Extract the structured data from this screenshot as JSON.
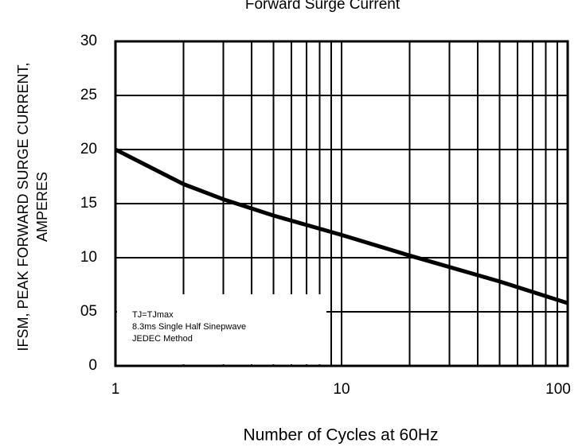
{
  "chart_data": {
    "type": "line",
    "title": "Forward Surge Current",
    "xlabel": "Number of Cycles at 60Hz",
    "ylabel": [
      "IFSM, PEAK FORWARD SURGE CURRENT,",
      "AMPERES"
    ],
    "annotation": [
      "TJ=TJmax",
      "8.3ms Single Half  Sinepwave",
      "JEDEC Method"
    ],
    "x": [
      1,
      2,
      3,
      5,
      10,
      20,
      50,
      100
    ],
    "series": [
      {
        "color": "#000000",
        "values": [
          20,
          16.8,
          15.4,
          13.9,
          12.1,
          10.2,
          7.8,
          5.8
        ]
      }
    ],
    "xscale": "log",
    "xlim": [
      1,
      100
    ],
    "xticks": [
      1,
      10,
      100
    ],
    "xgrid": [
      2,
      3,
      4,
      5,
      6,
      7,
      8,
      9,
      10,
      20,
      30,
      40,
      50,
      60,
      70,
      80,
      90
    ],
    "ylim": [
      0,
      30
    ],
    "yticks": [
      0,
      {
        "value": 5,
        "label": "05"
      },
      10,
      15,
      20,
      25,
      30
    ],
    "grid": true
  }
}
